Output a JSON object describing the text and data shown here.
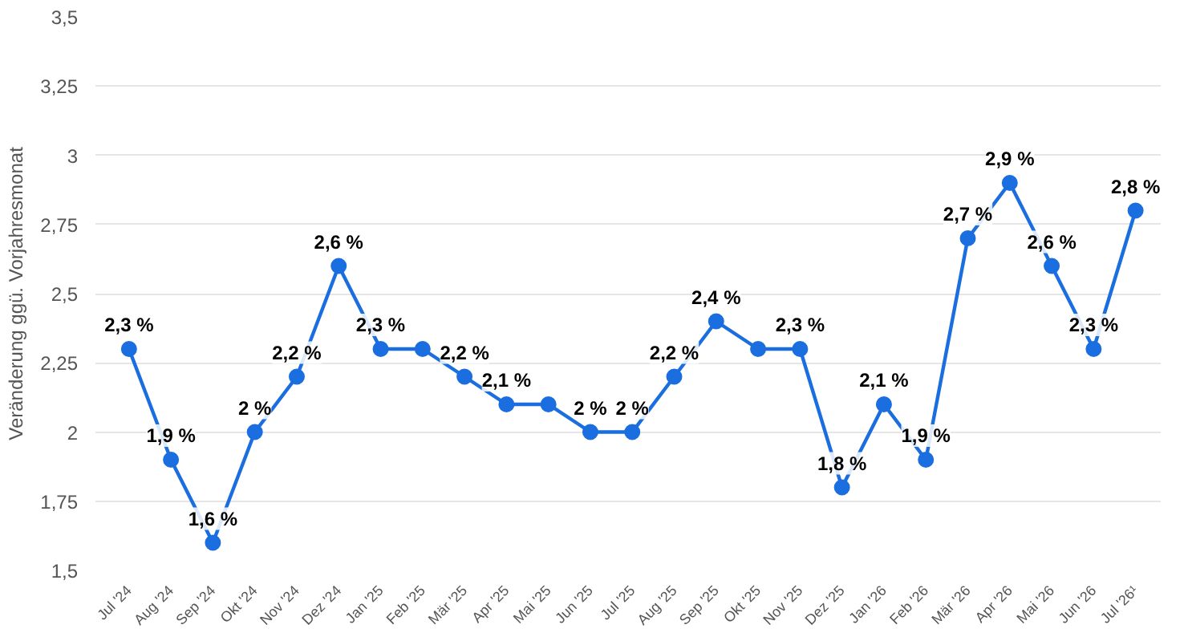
{
  "chart_data": {
    "type": "line",
    "ylabel": "Veränderung ggü. Vorjahresmonat",
    "categories": [
      "Jul '24",
      "Aug '24",
      "Sep '24",
      "Okt '24",
      "Nov '24",
      "Dez '24",
      "Jan '25",
      "Feb '25",
      "Mär '25",
      "Apr '25",
      "Mai '25",
      "Jun '25",
      "Jul '25",
      "Aug '25",
      "Sep '25",
      "Okt '25",
      "Nov '25",
      "Dez '25",
      "Jan '26",
      "Feb '26",
      "Mär '26",
      "Apr '26",
      "Mai '26",
      "Jun '26",
      "Jul '26¹"
    ],
    "series": [
      {
        "color": "#1a6ee0",
        "values": [
          2.3,
          1.9,
          1.6,
          2,
          2.2,
          2.6,
          2.3,
          2.3,
          2.2,
          2.1,
          2.1,
          2,
          2,
          2.2,
          2.4,
          2.3,
          2.3,
          1.8,
          2.1,
          1.9,
          2.7,
          2.9,
          2.6,
          2.3,
          2.8
        ],
        "value_labels": [
          "2,3 %",
          "1,9 %",
          "1,6 %",
          "2 %",
          "2,2 %",
          "2,6 %",
          "2,3 %",
          null,
          "2,2 %",
          "2,1 %",
          null,
          "2 %",
          "2 %",
          "2,2 %",
          "2,4 %",
          null,
          "2,3 %",
          "1,8 %",
          "2,1 %",
          "1,9 %",
          "2,7 %",
          "2,9 %",
          "2,6 %",
          "2,3 %",
          "2,8 %"
        ]
      }
    ],
    "ylim": [
      1.5,
      3.5
    ],
    "yticks": [
      {
        "value": 1.5,
        "label": "1,5"
      },
      {
        "value": 1.75,
        "label": "1,75"
      },
      {
        "value": 2,
        "label": "2"
      },
      {
        "value": 2.25,
        "label": "2,25"
      },
      {
        "value": 2.5,
        "label": "2,5"
      },
      {
        "value": 2.75,
        "label": "2,75"
      },
      {
        "value": 3,
        "label": "3"
      },
      {
        "value": 3.25,
        "label": "3,25"
      },
      {
        "value": 3.5,
        "label": "3,5"
      }
    ],
    "grid": "y",
    "marker": "circle",
    "line_style": "solid"
  }
}
